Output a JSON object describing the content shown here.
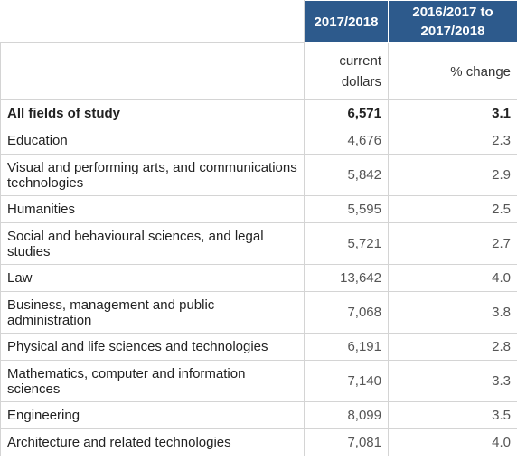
{
  "header": {
    "col2_title": "2017/2018",
    "col3_title": "2016/2017 to 2017/2018",
    "col2_unit": "current dollars",
    "col3_unit": "% change"
  },
  "rows": [
    {
      "label": "All fields of study",
      "value": "6,571",
      "change": "3.1"
    },
    {
      "label": "Education",
      "value": "4,676",
      "change": "2.3"
    },
    {
      "label": "Visual and performing arts, and communications technologies",
      "value": "5,842",
      "change": "2.9"
    },
    {
      "label": "Humanities",
      "value": "5,595",
      "change": "2.5"
    },
    {
      "label": "Social and behavioural sciences, and legal studies",
      "value": "5,721",
      "change": "2.7"
    },
    {
      "label": "Law",
      "value": "13,642",
      "change": "4.0"
    },
    {
      "label": "Business, management and public administration",
      "value": "7,068",
      "change": "3.8"
    },
    {
      "label": "Physical and life sciences and technologies",
      "value": "6,191",
      "change": "2.8"
    },
    {
      "label": "Mathematics, computer and information sciences",
      "value": "7,140",
      "change": "3.3"
    },
    {
      "label": "Engineering",
      "value": "8,099",
      "change": "3.5"
    },
    {
      "label": "Architecture and related technologies",
      "value": "7,081",
      "change": "4.0"
    }
  ],
  "colors": {
    "header_bg": "#2d5a8c",
    "header_text": "#ffffff",
    "border": "#d4d4d4"
  }
}
